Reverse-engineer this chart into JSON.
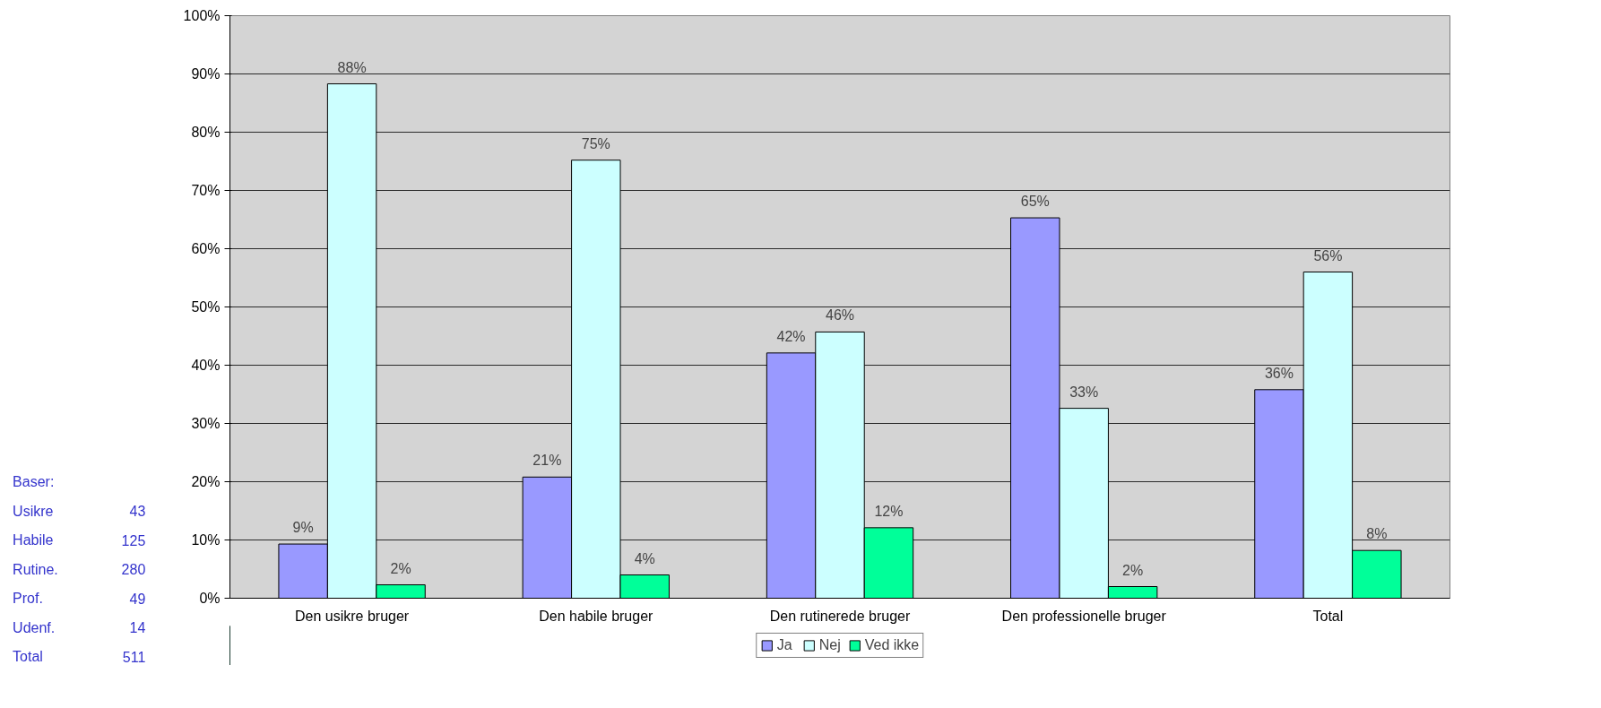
{
  "chart_data": {
    "type": "bar",
    "categories": [
      "Den usikre bruger",
      "Den habile bruger",
      "Den rutinerede bruger",
      "Den professionelle bruger",
      "Total"
    ],
    "series": [
      {
        "name": "Ja",
        "color": "#9999ff",
        "values": [
          9.3,
          20.8,
          42.1,
          65.3,
          35.8
        ],
        "value_labels": [
          "9%",
          "21%",
          "42%",
          "65%",
          "36%"
        ]
      },
      {
        "name": "Nej",
        "color": "#ccffff",
        "values": [
          88.3,
          75.2,
          45.7,
          32.6,
          56
        ],
        "value_labels": [
          "88%",
          "75%",
          "46%",
          "33%",
          "56%"
        ]
      },
      {
        "name": "Ved ikke",
        "color": "#00ff99",
        "values": [
          2.3,
          4,
          12.1,
          2,
          8.2
        ],
        "value_labels": [
          "2%",
          "4%",
          "12%",
          "2%",
          "8%"
        ]
      }
    ],
    "ylim": [
      0,
      100
    ],
    "yticks": [
      {
        "value": 0,
        "label": "0%"
      },
      {
        "value": 10,
        "label": "10%"
      },
      {
        "value": 20,
        "label": "20%"
      },
      {
        "value": 30,
        "label": "30%"
      },
      {
        "value": 40,
        "label": "40%"
      },
      {
        "value": 50,
        "label": "50%"
      },
      {
        "value": 60,
        "label": "60%"
      },
      {
        "value": 70,
        "label": "70%"
      },
      {
        "value": 80,
        "label": "80%"
      },
      {
        "value": 90,
        "label": "90%"
      },
      {
        "value": 100,
        "label": "100%"
      }
    ],
    "grid": "y",
    "legend": "bottom",
    "annotations": [
      "Baser:",
      "Usikre 43",
      "Habile 125",
      "Rutine. 280",
      "Prof. 49",
      "Udenf. 14",
      "Total 511"
    ]
  }
}
